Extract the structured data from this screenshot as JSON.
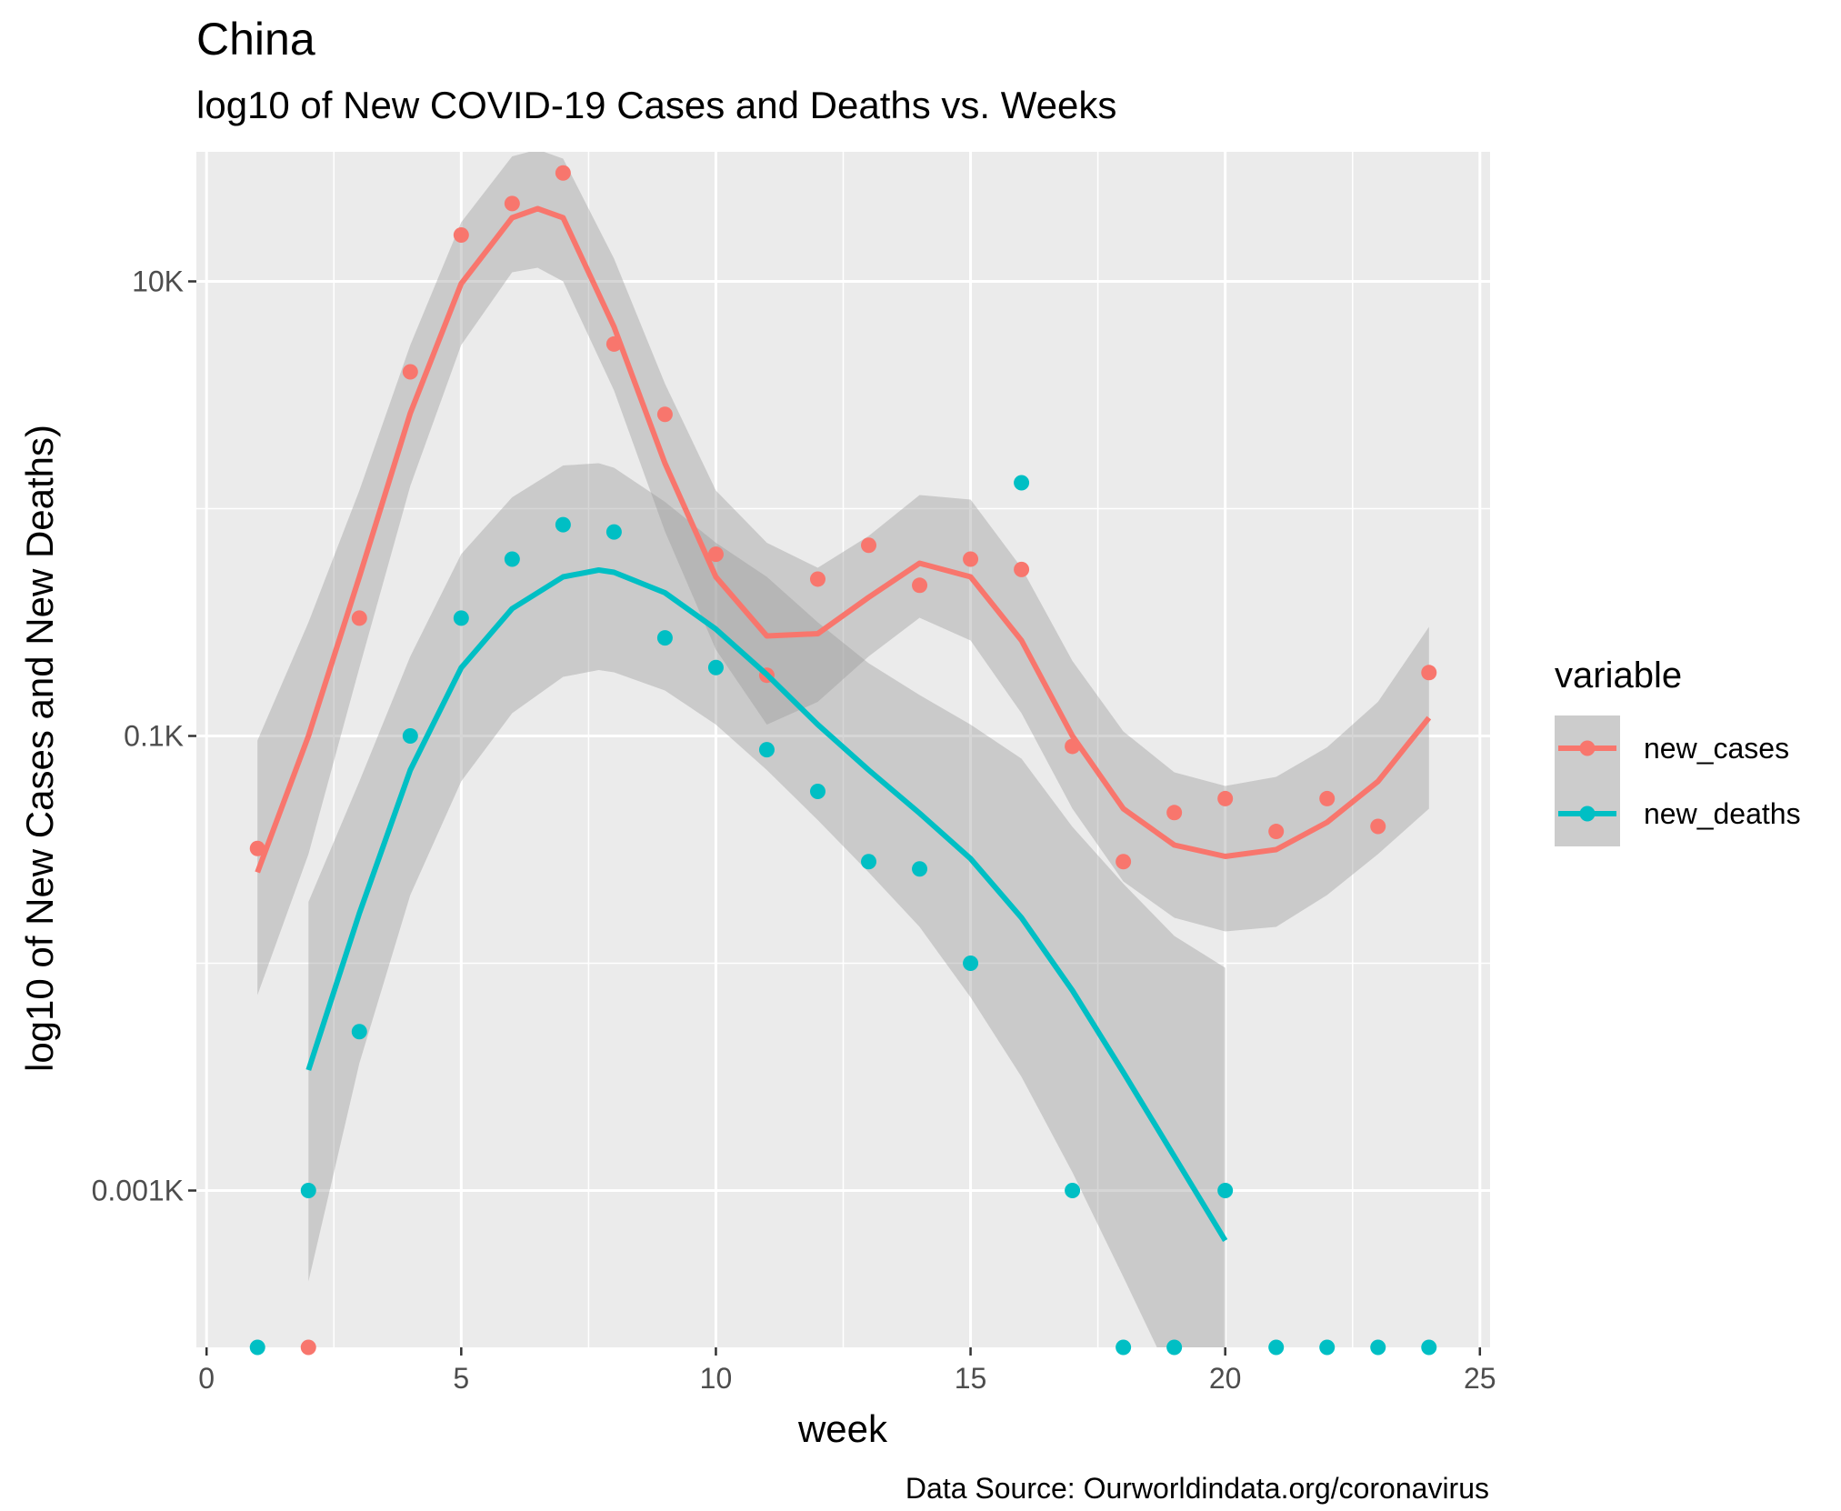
{
  "chart_data": {
    "type": "scatter",
    "title": "China",
    "subtitle": "log10 of New COVID-19 Cases and Deaths vs. Weeks",
    "xlabel": "week",
    "ylabel": "log10 of New Cases and New Deaths)",
    "caption": "Data Source: Ourworldindata.org/coronavirus",
    "xlim": [
      -0.2,
      25.2
    ],
    "x_ticks": [
      0,
      5,
      10,
      15,
      20,
      25
    ],
    "x_tick_labels": [
      "0",
      "5",
      "10",
      "15",
      "20",
      "25"
    ],
    "y_scale": "log10",
    "ylim_log10": [
      -0.69,
      4.57
    ],
    "y_ticks_log10": [
      0,
      2,
      4
    ],
    "y_tick_labels": [
      "0.001K",
      "0.1K",
      "10K"
    ],
    "zero_floor_log10": -0.69,
    "legend": {
      "title": "variable",
      "position": "right"
    },
    "series": [
      {
        "name": "new_cases",
        "color": "#F8766D",
        "points": [
          {
            "x": 1,
            "y": 32
          },
          {
            "x": 2,
            "y": 0
          },
          {
            "x": 3,
            "y": 330
          },
          {
            "x": 4,
            "y": 4000
          },
          {
            "x": 5,
            "y": 16000
          },
          {
            "x": 6,
            "y": 22000
          },
          {
            "x": 7,
            "y": 30000
          },
          {
            "x": 8,
            "y": 5300
          },
          {
            "x": 9,
            "y": 2600
          },
          {
            "x": 10,
            "y": 630
          },
          {
            "x": 11,
            "y": 185
          },
          {
            "x": 12,
            "y": 490
          },
          {
            "x": 13,
            "y": 690
          },
          {
            "x": 14,
            "y": 460
          },
          {
            "x": 15,
            "y": 600
          },
          {
            "x": 16,
            "y": 540
          },
          {
            "x": 17,
            "y": 90
          },
          {
            "x": 18,
            "y": 28
          },
          {
            "x": 19,
            "y": 46
          },
          {
            "x": 20,
            "y": 53
          },
          {
            "x": 21,
            "y": 38
          },
          {
            "x": 22,
            "y": 53
          },
          {
            "x": 23,
            "y": 40
          },
          {
            "x": 24,
            "y": 190
          }
        ],
        "fit_log10": [
          [
            1,
            1.4
          ],
          [
            2,
            2.0
          ],
          [
            3,
            2.7
          ],
          [
            4,
            3.42
          ],
          [
            5,
            3.99
          ],
          [
            6,
            4.28
          ],
          [
            6.5,
            4.32
          ],
          [
            7,
            4.28
          ],
          [
            8,
            3.8
          ],
          [
            9,
            3.2
          ],
          [
            10,
            2.7
          ],
          [
            11,
            2.44
          ],
          [
            12,
            2.45
          ],
          [
            13,
            2.61
          ],
          [
            14,
            2.76
          ],
          [
            15,
            2.7
          ],
          [
            16,
            2.42
          ],
          [
            17,
            2.0
          ],
          [
            18,
            1.68
          ],
          [
            19,
            1.52
          ],
          [
            20,
            1.47
          ],
          [
            21,
            1.5
          ],
          [
            22,
            1.62
          ],
          [
            23,
            1.8
          ],
          [
            24,
            2.08
          ]
        ],
        "band_upper_log10": [
          [
            1,
            1.98
          ],
          [
            2,
            2.5
          ],
          [
            3,
            3.08
          ],
          [
            4,
            3.72
          ],
          [
            5,
            4.26
          ],
          [
            6,
            4.55
          ],
          [
            6.5,
            4.58
          ],
          [
            7,
            4.54
          ],
          [
            8,
            4.1
          ],
          [
            9,
            3.55
          ],
          [
            10,
            3.08
          ],
          [
            11,
            2.85
          ],
          [
            12,
            2.74
          ],
          [
            13,
            2.88
          ],
          [
            14,
            3.06
          ],
          [
            15,
            3.04
          ],
          [
            16,
            2.74
          ],
          [
            17,
            2.33
          ],
          [
            18,
            2.02
          ],
          [
            19,
            1.84
          ],
          [
            20,
            1.78
          ],
          [
            21,
            1.82
          ],
          [
            22,
            1.95
          ],
          [
            23,
            2.15
          ],
          [
            24,
            2.48
          ]
        ],
        "band_lower_log10": [
          [
            1,
            0.86
          ],
          [
            2,
            1.48
          ],
          [
            3,
            2.3
          ],
          [
            4,
            3.1
          ],
          [
            5,
            3.72
          ],
          [
            6,
            4.04
          ],
          [
            6.5,
            4.06
          ],
          [
            7,
            4.0
          ],
          [
            8,
            3.52
          ],
          [
            9,
            2.9
          ],
          [
            10,
            2.38
          ],
          [
            11,
            2.05
          ],
          [
            12,
            2.15
          ],
          [
            13,
            2.35
          ],
          [
            14,
            2.52
          ],
          [
            15,
            2.42
          ],
          [
            16,
            2.1
          ],
          [
            17,
            1.68
          ],
          [
            18,
            1.36
          ],
          [
            19,
            1.2
          ],
          [
            20,
            1.14
          ],
          [
            21,
            1.16
          ],
          [
            22,
            1.3
          ],
          [
            23,
            1.48
          ],
          [
            24,
            1.68
          ]
        ]
      },
      {
        "name": "new_deaths",
        "color": "#00BFC4",
        "points": [
          {
            "x": 1,
            "y": 0
          },
          {
            "x": 2,
            "y": 1
          },
          {
            "x": 3,
            "y": 5
          },
          {
            "x": 4,
            "y": 100
          },
          {
            "x": 5,
            "y": 330
          },
          {
            "x": 6,
            "y": 600
          },
          {
            "x": 7,
            "y": 850
          },
          {
            "x": 8,
            "y": 790
          },
          {
            "x": 9,
            "y": 270
          },
          {
            "x": 10,
            "y": 200
          },
          {
            "x": 11,
            "y": 87
          },
          {
            "x": 12,
            "y": 57
          },
          {
            "x": 13,
            "y": 28
          },
          {
            "x": 14,
            "y": 26
          },
          {
            "x": 15,
            "y": 10
          },
          {
            "x": 16,
            "y": 1300
          },
          {
            "x": 17,
            "y": 1
          },
          {
            "x": 18,
            "y": 0
          },
          {
            "x": 19,
            "y": 0
          },
          {
            "x": 20,
            "y": 1
          },
          {
            "x": 21,
            "y": 0
          },
          {
            "x": 22,
            "y": 0
          },
          {
            "x": 23,
            "y": 0
          },
          {
            "x": 24,
            "y": 0
          }
        ],
        "fit_log10": [
          [
            2,
            0.53
          ],
          [
            3,
            1.22
          ],
          [
            4,
            1.85
          ],
          [
            5,
            2.3
          ],
          [
            6,
            2.56
          ],
          [
            7,
            2.7
          ],
          [
            7.7,
            2.73
          ],
          [
            8,
            2.72
          ],
          [
            9,
            2.63
          ],
          [
            10,
            2.47
          ],
          [
            11,
            2.27
          ],
          [
            12,
            2.05
          ],
          [
            13,
            1.85
          ],
          [
            14,
            1.66
          ],
          [
            15,
            1.46
          ],
          [
            16,
            1.2
          ],
          [
            17,
            0.88
          ],
          [
            18,
            0.52
          ],
          [
            19,
            0.15
          ],
          [
            20,
            -0.22
          ]
        ],
        "band_upper_log10": [
          [
            2,
            1.27
          ],
          [
            3,
            1.8
          ],
          [
            4,
            2.35
          ],
          [
            5,
            2.8
          ],
          [
            6,
            3.05
          ],
          [
            7,
            3.19
          ],
          [
            7.7,
            3.2
          ],
          [
            8,
            3.18
          ],
          [
            9,
            3.03
          ],
          [
            10,
            2.85
          ],
          [
            11,
            2.7
          ],
          [
            12,
            2.5
          ],
          [
            13,
            2.32
          ],
          [
            14,
            2.18
          ],
          [
            15,
            2.05
          ],
          [
            16,
            1.9
          ],
          [
            17,
            1.6
          ],
          [
            18,
            1.35
          ],
          [
            19,
            1.12
          ],
          [
            20,
            0.98
          ]
        ],
        "band_lower_log10": [
          [
            2,
            -0.4
          ],
          [
            3,
            0.56
          ],
          [
            4,
            1.3
          ],
          [
            5,
            1.8
          ],
          [
            6,
            2.1
          ],
          [
            7,
            2.26
          ],
          [
            7.7,
            2.29
          ],
          [
            8,
            2.28
          ],
          [
            9,
            2.2
          ],
          [
            10,
            2.05
          ],
          [
            11,
            1.85
          ],
          [
            12,
            1.63
          ],
          [
            13,
            1.4
          ],
          [
            14,
            1.16
          ],
          [
            15,
            0.85
          ],
          [
            16,
            0.5
          ],
          [
            17,
            0.08
          ],
          [
            18,
            -0.38
          ],
          [
            19,
            -0.85
          ],
          [
            20,
            -1.45
          ]
        ]
      }
    ]
  }
}
